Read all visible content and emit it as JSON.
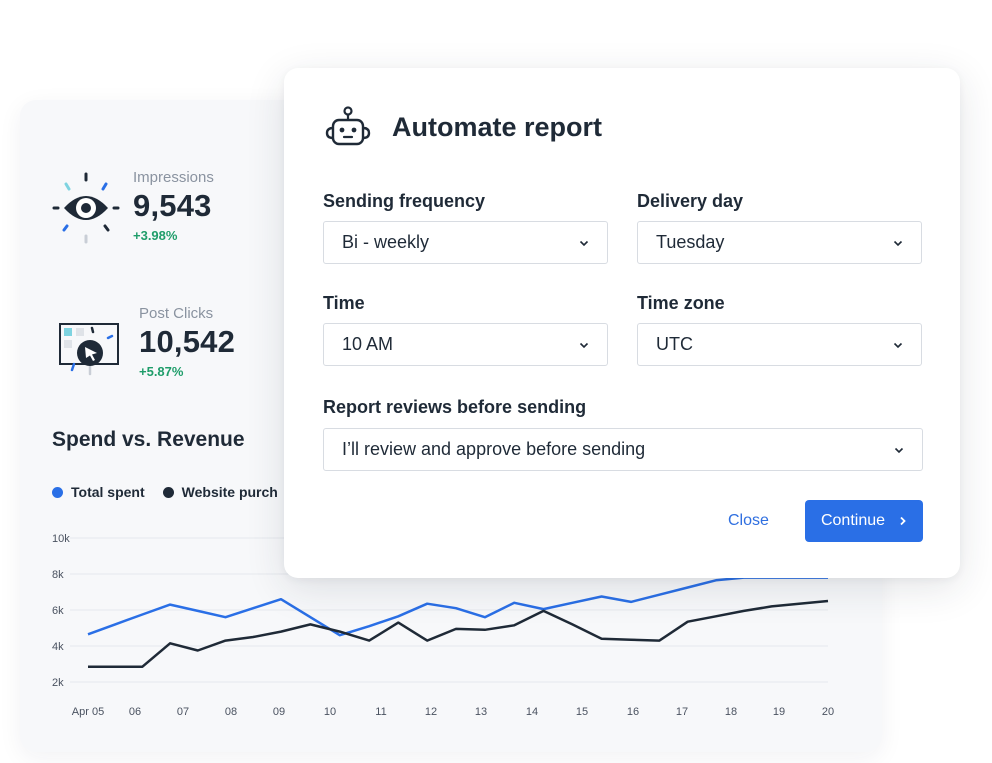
{
  "metrics": [
    {
      "label": "Impressions",
      "value": "9,543",
      "delta": "+3.98%"
    },
    {
      "label": "Post Clicks",
      "value": "10,542",
      "delta": "+5.87%"
    }
  ],
  "section": {
    "title": "Spend vs. Revenue"
  },
  "legend": [
    {
      "label": "Total spent",
      "color": "#2a6fe6"
    },
    {
      "label": "Website purch",
      "color": "#1f2a37"
    }
  ],
  "chart_data": {
    "type": "line",
    "ylim": [
      2000,
      10000
    ],
    "y_ticks": [
      "10k",
      "8k",
      "6k",
      "4k",
      "2k"
    ],
    "x": [
      "Apr 05",
      "06",
      "07",
      "08",
      "09",
      "10",
      "11",
      "12",
      "13",
      "14",
      "15",
      "16",
      "17",
      "18",
      "19",
      "20"
    ],
    "series": [
      {
        "name": "Total spent",
        "color": "#2a6fe6",
        "points": [
          [
            0,
            4650
          ],
          [
            0.5,
            5200
          ],
          [
            1,
            5750
          ],
          [
            1.5,
            6300
          ],
          [
            2,
            5950
          ],
          [
            2.5,
            5600
          ],
          [
            3,
            6100
          ],
          [
            3.5,
            6600
          ],
          [
            4,
            5600
          ],
          [
            4.5,
            4600
          ],
          [
            5,
            5100
          ],
          [
            5.5,
            5650
          ],
          [
            6,
            6350
          ],
          [
            6.5,
            6100
          ],
          [
            7,
            5600
          ],
          [
            7.5,
            6400
          ],
          [
            8,
            6050
          ],
          [
            8.5,
            6400
          ],
          [
            9,
            6750
          ],
          [
            9.5,
            6450
          ],
          [
            10,
            6850
          ],
          [
            10.5,
            7250
          ],
          [
            11,
            7650
          ],
          [
            11.5,
            7800
          ],
          [
            12,
            7800
          ],
          [
            13,
            7800
          ]
        ]
      },
      {
        "name": "Website purch",
        "color": "#1f2a37",
        "points": [
          [
            0,
            2850
          ],
          [
            1,
            2850
          ],
          [
            1.5,
            4150
          ],
          [
            2,
            3750
          ],
          [
            2.5,
            4300
          ],
          [
            3,
            4500
          ],
          [
            3.5,
            4800
          ],
          [
            4,
            5200
          ],
          [
            4.5,
            4800
          ],
          [
            5,
            4300
          ],
          [
            5.5,
            5300
          ],
          [
            6,
            4300
          ],
          [
            6.5,
            4950
          ],
          [
            7,
            4900
          ],
          [
            7.5,
            5150
          ],
          [
            8,
            5950
          ],
          [
            8.5,
            5200
          ],
          [
            9,
            4400
          ],
          [
            9.5,
            4350
          ],
          [
            10,
            4300
          ],
          [
            10.5,
            5350
          ],
          [
            11,
            5650
          ],
          [
            11.5,
            5950
          ],
          [
            12,
            6200
          ],
          [
            13,
            6500
          ]
        ]
      }
    ]
  },
  "modal": {
    "title": "Automate report",
    "fields": {
      "frequency": {
        "label": "Sending frequency",
        "value": "Bi - weekly"
      },
      "day": {
        "label": "Delivery day",
        "value": "Tuesday"
      },
      "time": {
        "label": "Time",
        "value": "10 AM"
      },
      "timezone": {
        "label": "Time zone",
        "value": "UTC"
      },
      "review": {
        "label": "Report reviews before sending",
        "value": "I’ll review and approve before sending"
      }
    },
    "close_label": "Close",
    "continue_label": "Continue"
  }
}
